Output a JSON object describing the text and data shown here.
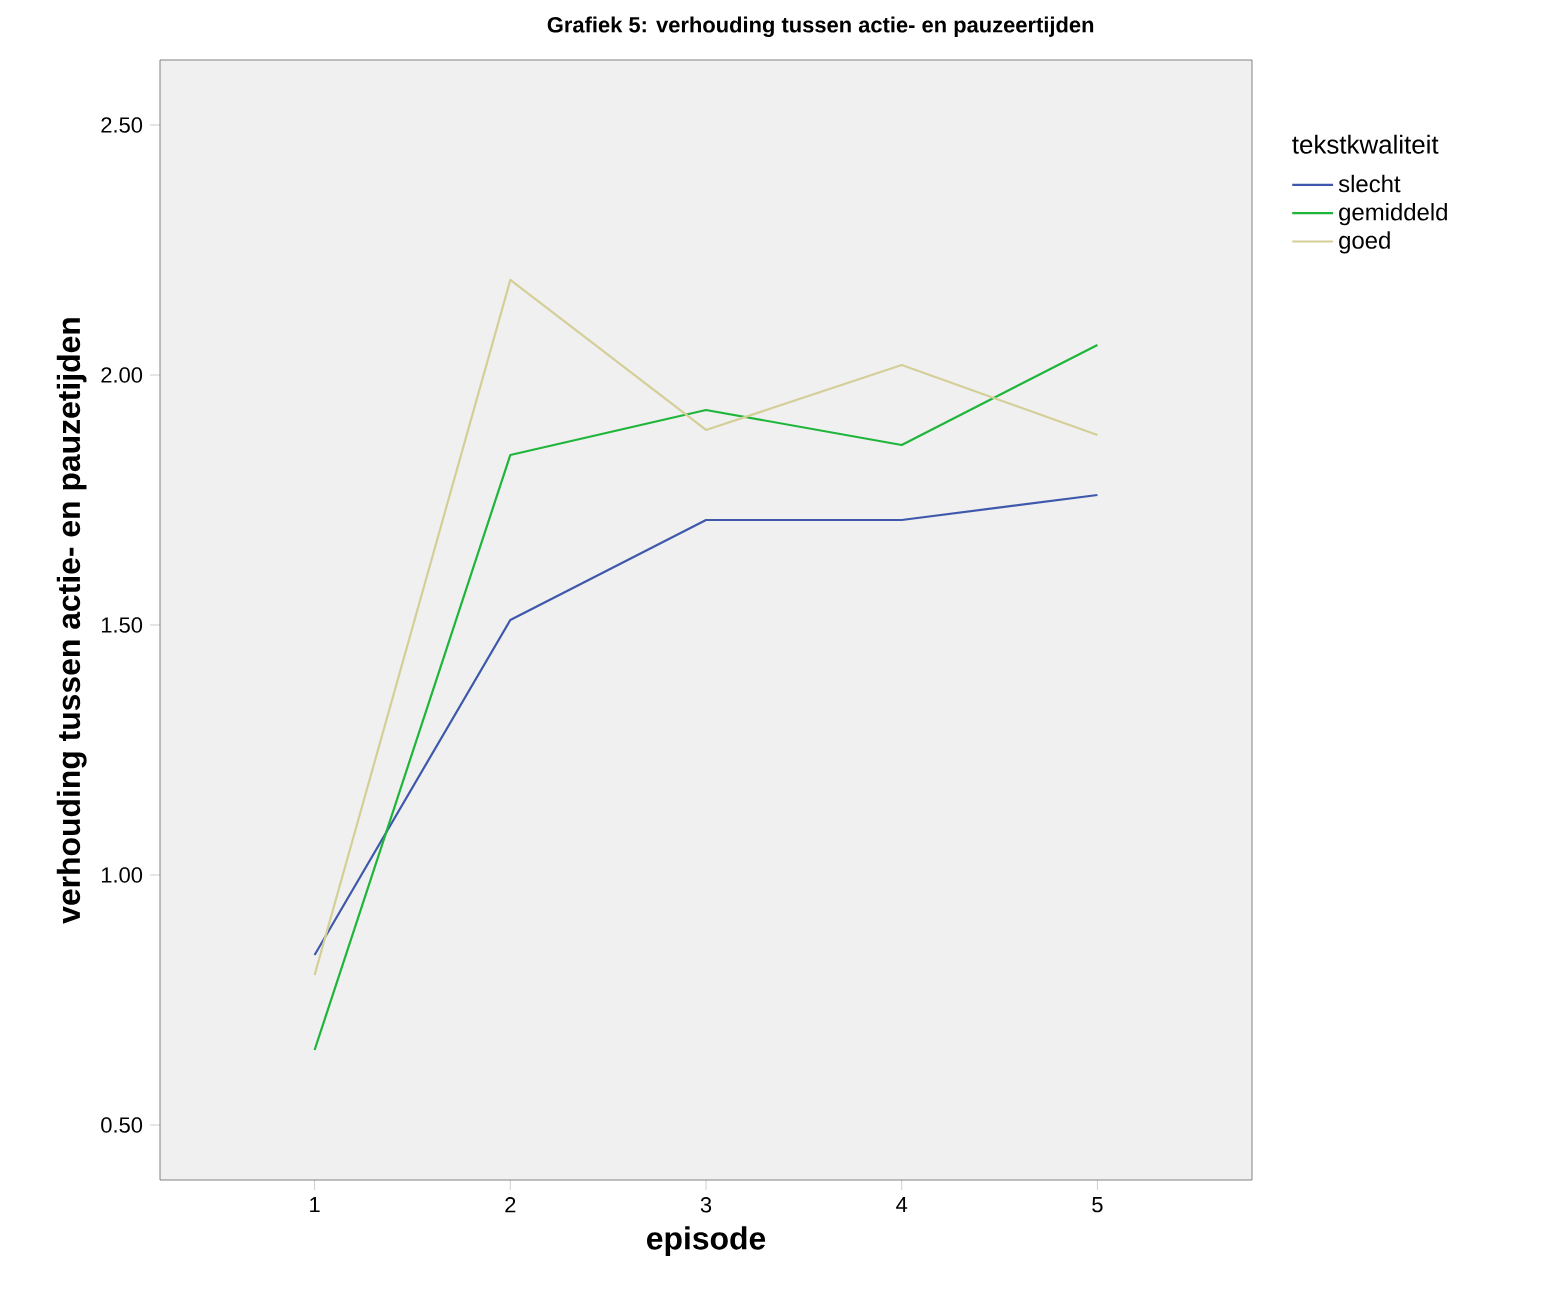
{
  "chart_data": {
    "type": "line",
    "title": "Grafiek 5: verhouding tussen actie- en pauzeertijden",
    "xlabel": "episode",
    "ylabel": "verhouding tussen actie- en pauzetijden",
    "legend_title": "tekstkwaliteit",
    "x": [
      1,
      2,
      3,
      4,
      5
    ],
    "series": [
      {
        "name": "slecht",
        "color": "#3e58ac",
        "values": [
          0.84,
          1.51,
          1.71,
          1.71,
          1.76
        ]
      },
      {
        "name": "gemiddeld",
        "color": "#1eb53a",
        "values": [
          0.65,
          1.84,
          1.93,
          1.86,
          2.06
        ]
      },
      {
        "name": "goed",
        "color": "#d4ce97",
        "values": [
          0.8,
          2.19,
          1.89,
          2.02,
          1.88
        ]
      }
    ],
    "xlim": [
      0.21,
      5.79
    ],
    "ylim": [
      0.39,
      2.63
    ],
    "xticks": [
      1,
      2,
      3,
      4,
      5
    ],
    "yticks": [
      {
        "value": 0.5,
        "label": "0.50"
      },
      {
        "value": 1.0,
        "label": "1.00"
      },
      {
        "value": 1.5,
        "label": "1.50"
      },
      {
        "value": 2.0,
        "label": "2.00"
      },
      {
        "value": 2.5,
        "label": "2.50"
      }
    ],
    "legend": "right",
    "grid": false,
    "marker": "none",
    "line_style": "solid"
  }
}
